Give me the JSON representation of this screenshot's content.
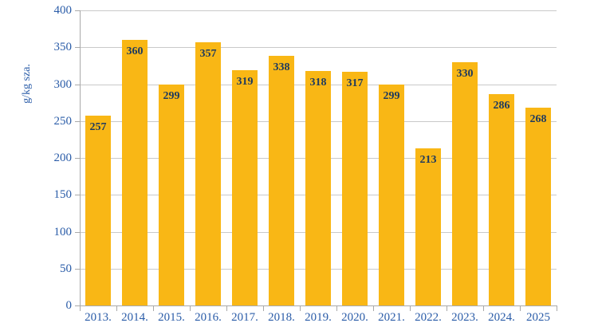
{
  "chart_data": {
    "type": "bar",
    "title": "",
    "xlabel": "",
    "ylabel": "g/kg sza.",
    "categories": [
      "2013.",
      "2014.",
      "2015.",
      "2016.",
      "2017.",
      "2018.",
      "2019.",
      "2020.",
      "2021.",
      "2022.",
      "2023.",
      "2024.",
      "2025"
    ],
    "values": [
      257,
      360,
      299,
      357,
      319,
      338,
      318,
      317,
      299,
      213,
      330,
      286,
      268
    ],
    "ylim": [
      0,
      400
    ],
    "ytick_step": 50,
    "grid": true,
    "legend": false,
    "value_labels_position": "inside-top",
    "colors": {
      "bar": "#f9b715",
      "axis_text": "#2a5ca8",
      "value_text": "#1e3a5f",
      "gridline": "#c9c9c9",
      "axis_line": "#a9a9a9"
    }
  }
}
